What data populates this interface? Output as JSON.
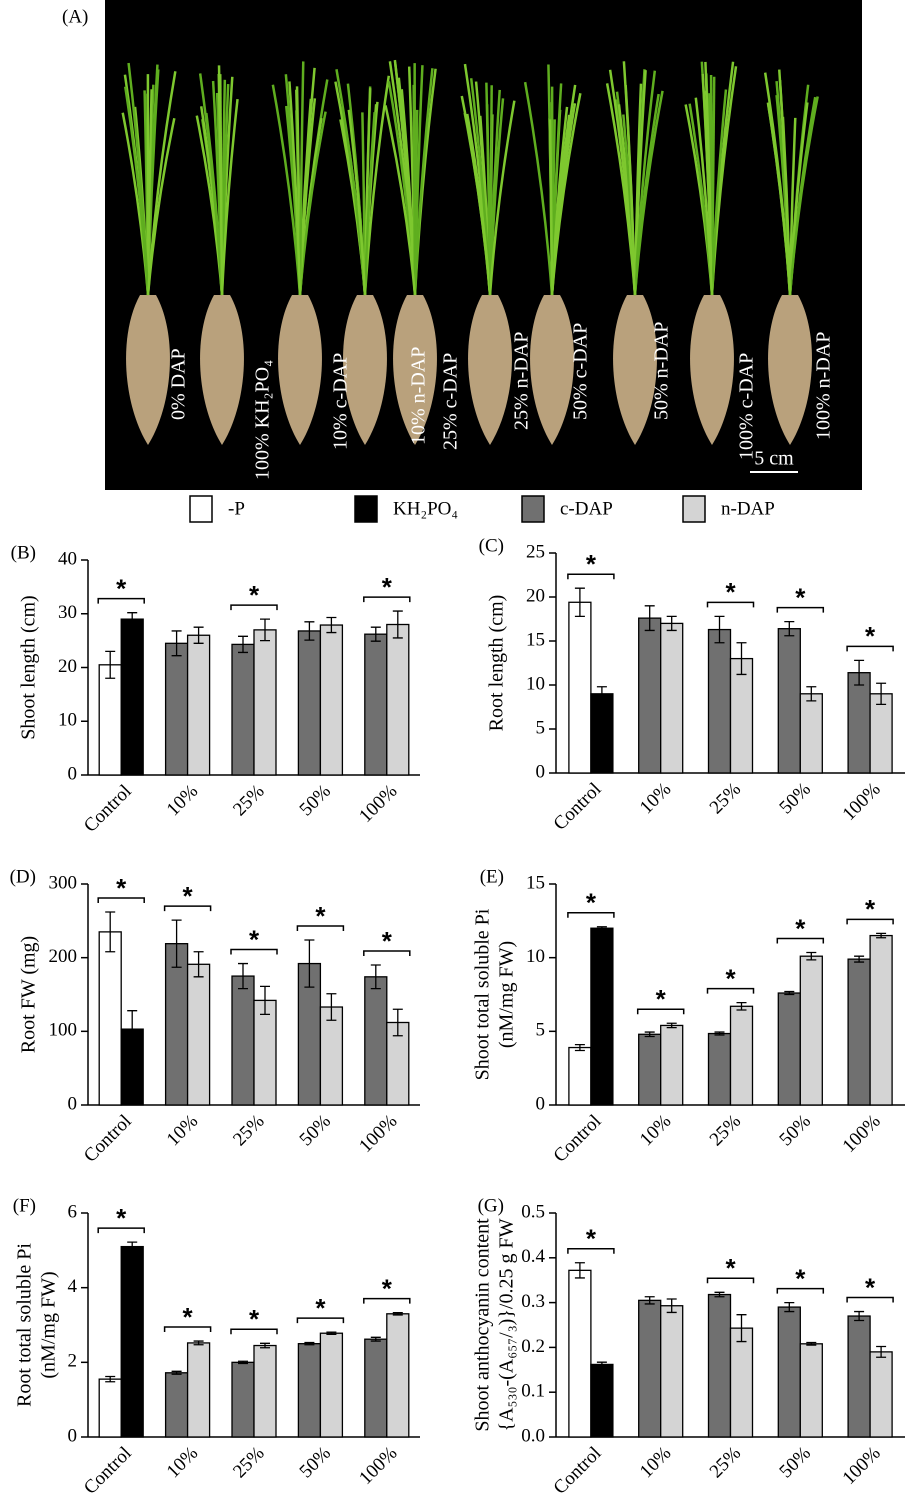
{
  "panel_a": {
    "label": "(A)",
    "plants": [
      "0% DAP",
      "100% KH₂PO₄",
      "10% c-DAP",
      "10% n-DAP",
      "25% c-DAP",
      "25% n-DAP",
      "50% c-DAP",
      "50% n-DAP",
      "100% c-DAP",
      "100% n-DAP"
    ],
    "scale_bar": "5 cm"
  },
  "legend": [
    {
      "name": "-P",
      "color": "#ffffff"
    },
    {
      "name": "KH₂PO₄",
      "color": "#000000"
    },
    {
      "name": "c-DAP",
      "color": "#707070"
    },
    {
      "name": "n-DAP",
      "color": "#d4d4d4"
    }
  ],
  "chart_data": [
    {
      "type": "bar",
      "label": "(B)",
      "ylabel": [
        "Shoot length (cm)"
      ],
      "categories": [
        "Control",
        "10%",
        "25%",
        "50%",
        "100%"
      ],
      "series": [
        {
          "values": [
            20.5,
            null,
            null,
            null,
            null
          ],
          "errors": [
            2.5,
            null,
            null,
            null,
            null
          ]
        },
        {
          "values": [
            29,
            null,
            null,
            null,
            null
          ],
          "errors": [
            1.2,
            null,
            null,
            null,
            null
          ]
        },
        {
          "values": [
            null,
            24.5,
            24.3,
            26.8,
            26.2
          ],
          "errors": [
            null,
            2.3,
            1.5,
            1.7,
            1.3
          ]
        },
        {
          "values": [
            null,
            26,
            27,
            27.9,
            28
          ],
          "errors": [
            null,
            1.5,
            2,
            1.4,
            2.5
          ]
        }
      ],
      "ylim": [
        0,
        40
      ],
      "yticks": [
        0,
        10,
        20,
        30,
        40
      ],
      "annotations": [
        {
          "text": "*",
          "category": "Control"
        },
        {
          "text": "*",
          "category": "25%"
        },
        {
          "text": "*",
          "category": "100%"
        }
      ]
    },
    {
      "type": "bar",
      "label": "(C)",
      "ylabel": [
        "Root length (cm)"
      ],
      "categories": [
        "Control",
        "10%",
        "25%",
        "50%",
        "100%"
      ],
      "series": [
        {
          "values": [
            19.4,
            null,
            null,
            null,
            null
          ],
          "errors": [
            1.6,
            null,
            null,
            null,
            null
          ]
        },
        {
          "values": [
            9,
            null,
            null,
            null,
            null
          ],
          "errors": [
            0.8,
            null,
            null,
            null,
            null
          ]
        },
        {
          "values": [
            null,
            17.6,
            16.3,
            16.4,
            11.4
          ],
          "errors": [
            null,
            1.4,
            1.5,
            0.8,
            1.4
          ]
        },
        {
          "values": [
            null,
            17,
            13,
            9,
            9
          ],
          "errors": [
            null,
            0.8,
            1.8,
            0.8,
            1.2
          ]
        }
      ],
      "ylim": [
        0,
        25
      ],
      "yticks": [
        0,
        5,
        10,
        15,
        20,
        25
      ],
      "annotations": [
        {
          "text": "*",
          "category": "Control"
        },
        {
          "text": "*",
          "category": "25%"
        },
        {
          "text": "*",
          "category": "50%"
        },
        {
          "text": "*",
          "category": "100%"
        }
      ]
    },
    {
      "type": "bar",
      "label": "(D)",
      "ylabel": [
        "Root FW (mg)"
      ],
      "categories": [
        "Control",
        "10%",
        "25%",
        "50%",
        "100%"
      ],
      "series": [
        {
          "values": [
            235,
            null,
            null,
            null,
            null
          ],
          "errors": [
            27,
            null,
            null,
            null,
            null
          ]
        },
        {
          "values": [
            103,
            null,
            null,
            null,
            null
          ],
          "errors": [
            25,
            null,
            null,
            null,
            null
          ]
        },
        {
          "values": [
            null,
            219,
            175,
            192,
            174
          ],
          "errors": [
            null,
            32,
            17,
            32,
            16
          ]
        },
        {
          "values": [
            null,
            191,
            142,
            133,
            112
          ],
          "errors": [
            null,
            17,
            19,
            18,
            18
          ]
        }
      ],
      "ylim": [
        0,
        300
      ],
      "yticks": [
        0,
        100,
        200,
        300
      ],
      "annotations": [
        {
          "text": "*",
          "category": "Control"
        },
        {
          "text": "*",
          "category": "10%"
        },
        {
          "text": "*",
          "category": "25%"
        },
        {
          "text": "*",
          "category": "50%"
        },
        {
          "text": "*",
          "category": "100%"
        }
      ]
    },
    {
      "type": "bar",
      "label": "(E)",
      "ylabel": [
        "Shoot total soluble Pi",
        "(nM/mg FW)"
      ],
      "categories": [
        "Control",
        "10%",
        "25%",
        "50%",
        "100%"
      ],
      "series": [
        {
          "values": [
            3.9,
            null,
            null,
            null,
            null
          ],
          "errors": [
            0.2,
            null,
            null,
            null,
            null
          ]
        },
        {
          "values": [
            12,
            null,
            null,
            null,
            null
          ],
          "errors": [
            0.1,
            null,
            null,
            null,
            null
          ]
        },
        {
          "values": [
            null,
            4.8,
            4.85,
            7.6,
            9.9
          ],
          "errors": [
            null,
            0.15,
            0.1,
            0.1,
            0.2
          ]
        },
        {
          "values": [
            null,
            5.4,
            6.7,
            10.1,
            11.5
          ],
          "errors": [
            null,
            0.15,
            0.25,
            0.25,
            0.15
          ]
        }
      ],
      "ylim": [
        0,
        15
      ],
      "yticks": [
        0,
        5,
        10,
        15
      ],
      "annotations": [
        {
          "text": "*",
          "category": "Control"
        },
        {
          "text": "*",
          "category": "10%"
        },
        {
          "text": "*",
          "category": "25%"
        },
        {
          "text": "*",
          "category": "50%"
        },
        {
          "text": "*",
          "category": "100%"
        }
      ]
    },
    {
      "type": "bar",
      "label": "(F)",
      "ylabel": [
        "Root total soluble Pi",
        "(nM/mg FW)"
      ],
      "categories": [
        "Control",
        "10%",
        "25%",
        "50%",
        "100%"
      ],
      "series": [
        {
          "values": [
            1.55,
            null,
            null,
            null,
            null
          ],
          "errors": [
            0.07,
            null,
            null,
            null,
            null
          ]
        },
        {
          "values": [
            5.1,
            null,
            null,
            null,
            null
          ],
          "errors": [
            0.12,
            null,
            null,
            null,
            null
          ]
        },
        {
          "values": [
            null,
            1.72,
            2,
            2.5,
            2.62
          ],
          "errors": [
            null,
            0.04,
            0.03,
            0.03,
            0.05
          ]
        },
        {
          "values": [
            null,
            2.52,
            2.45,
            2.78,
            3.3
          ],
          "errors": [
            null,
            0.05,
            0.06,
            0.03,
            0.03
          ]
        }
      ],
      "ylim": [
        0,
        6
      ],
      "yticks": [
        0,
        2,
        4,
        6
      ],
      "annotations": [
        {
          "text": "*",
          "category": "Control"
        },
        {
          "text": "*",
          "category": "10%"
        },
        {
          "text": "*",
          "category": "25%"
        },
        {
          "text": "*",
          "category": "50%"
        },
        {
          "text": "*",
          "category": "100%"
        }
      ]
    },
    {
      "type": "bar",
      "label": "(G)",
      "ylabel": [
        "Shoot anthocyanin content",
        "{A₅₃₀-(A₆₅₇/₃)}/0.25 g FW"
      ],
      "categories": [
        "Control",
        "10%",
        "25%",
        "50%",
        "100%"
      ],
      "series": [
        {
          "values": [
            0.372,
            null,
            null,
            null,
            null
          ],
          "errors": [
            0.017,
            null,
            null,
            null,
            null
          ]
        },
        {
          "values": [
            0.162,
            null,
            null,
            null,
            null
          ],
          "errors": [
            0.005,
            null,
            null,
            null,
            null
          ]
        },
        {
          "values": [
            null,
            0.305,
            0.318,
            0.29,
            0.27
          ],
          "errors": [
            null,
            0.008,
            0.005,
            0.01,
            0.01
          ]
        },
        {
          "values": [
            null,
            0.293,
            0.243,
            0.208,
            0.19
          ],
          "errors": [
            null,
            0.015,
            0.03,
            0.003,
            0.012
          ]
        }
      ],
      "ylim": [
        0,
        0.5
      ],
      "yticks": [
        {
          "value": 0,
          "label": "0.0"
        },
        0.1,
        0.2,
        0.3,
        0.4,
        0.5
      ],
      "annotations": [
        {
          "text": "*",
          "category": "Control"
        },
        {
          "text": "*",
          "category": "25%"
        },
        {
          "text": "*",
          "category": "50%"
        },
        {
          "text": "*",
          "category": "100%"
        }
      ]
    }
  ]
}
